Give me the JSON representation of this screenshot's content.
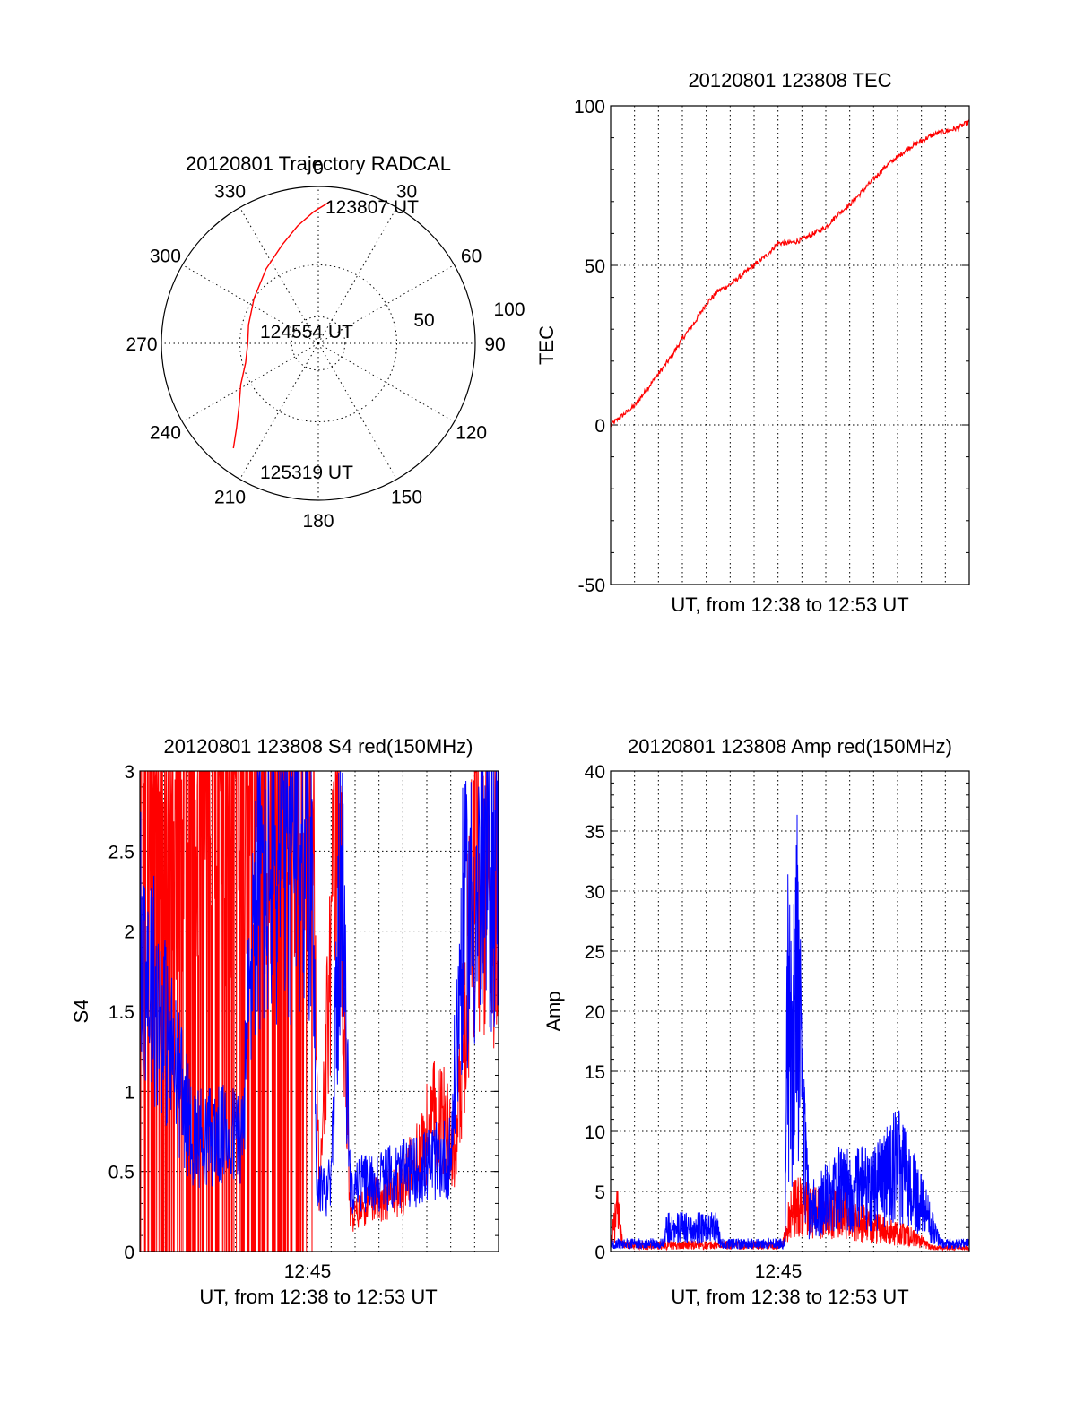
{
  "colors": {
    "red": "#ff0000",
    "blue": "#0000ff",
    "axis": "#000000"
  },
  "chart_data": [
    {
      "id": "trajectory",
      "type": "polar",
      "title": "20120801 Trajectory RADCAL",
      "angle_labels": [
        "0",
        "30",
        "60",
        "90",
        "120",
        "150",
        "180",
        "210",
        "240",
        "270",
        "300",
        "330"
      ],
      "radial_labels": [
        "50",
        "100"
      ],
      "rlim": [
        0,
        100
      ],
      "grid": true,
      "series": [
        {
          "color": "red",
          "points": [
            {
              "az": 5,
              "r": 91
            },
            {
              "az": 358,
              "r": 84
            },
            {
              "az": 350,
              "r": 76
            },
            {
              "az": 340,
              "r": 67
            },
            {
              "az": 325,
              "r": 58
            },
            {
              "az": 305,
              "r": 50
            },
            {
              "az": 285,
              "r": 46
            },
            {
              "az": 270,
              "r": 45
            },
            {
              "az": 255,
              "r": 48
            },
            {
              "az": 242,
              "r": 56
            },
            {
              "az": 232,
              "r": 64
            },
            {
              "az": 224,
              "r": 75
            },
            {
              "az": 219,
              "r": 86
            }
          ]
        }
      ],
      "annotations": [
        {
          "text": "123807 UT",
          "az": 5,
          "r": 91
        },
        {
          "text": "124554 UT",
          "az": 270,
          "r": 45
        },
        {
          "text": "125319 UT",
          "az": 219,
          "r": 86
        }
      ]
    },
    {
      "id": "tec",
      "type": "line",
      "title": "20120801 123808 TEC",
      "xlabel": "UT, from 12:38 to 12:53 UT",
      "ylabel": "TEC",
      "xlim": [
        0,
        15
      ],
      "ylim": [
        -50,
        100
      ],
      "yticks": [
        -50,
        0,
        50,
        100
      ],
      "xtick_labels": [],
      "grid": true,
      "series": [
        {
          "color": "red",
          "x": [
            0,
            0.5,
            1,
            1.5,
            2,
            2.5,
            3,
            3.5,
            4,
            4.5,
            5,
            5.5,
            6,
            6.5,
            7,
            7.5,
            8,
            8.5,
            9,
            9.5,
            10,
            10.5,
            11,
            11.5,
            12,
            12.5,
            13,
            13.5,
            14,
            14.5,
            15
          ],
          "y": [
            0,
            3,
            6,
            11,
            16,
            21,
            27,
            32,
            38,
            42,
            44,
            47,
            50,
            53,
            57,
            57,
            58,
            60,
            62,
            66,
            69,
            73,
            77,
            81,
            84,
            87,
            89,
            91,
            92,
            93,
            95
          ]
        }
      ]
    },
    {
      "id": "s4",
      "type": "line",
      "title": "20120801 123808 S4 red(150MHz)",
      "xlabel": "UT, from 12:38 to 12:53 UT",
      "ylabel": "S4",
      "xlim": [
        0,
        15
      ],
      "ylim": [
        0,
        3
      ],
      "yticks": [
        0,
        0.5,
        1,
        1.5,
        2,
        2.5,
        3
      ],
      "xtick_labels": [
        {
          "x": 7,
          "label": "12:45"
        }
      ],
      "grid": true,
      "series": [
        {
          "color": "red",
          "style": "scintillation",
          "profile": [
            [
              0,
              3.0
            ],
            [
              7.2,
              3.0
            ],
            [
              7.5,
              0.3
            ],
            [
              8.3,
              2.8
            ],
            [
              8.8,
              0.2
            ],
            [
              9.5,
              0.3
            ],
            [
              11.0,
              0.4
            ],
            [
              12.5,
              0.9
            ],
            [
              13.2,
              0.6
            ],
            [
              14.0,
              2.5
            ],
            [
              15,
              2.2
            ]
          ]
        },
        {
          "color": "blue",
          "style": "scintillation",
          "profile": [
            [
              0,
              2.0
            ],
            [
              2.2,
              0.72
            ],
            [
              4.3,
              0.72
            ],
            [
              4.8,
              2.3
            ],
            [
              7.2,
              2.6
            ],
            [
              7.4,
              0.4
            ],
            [
              8.0,
              0.4
            ],
            [
              8.4,
              2.5
            ],
            [
              8.8,
              0.4
            ],
            [
              11.5,
              0.5
            ],
            [
              13.0,
              0.6
            ],
            [
              13.5,
              2.0
            ],
            [
              15,
              2.5
            ]
          ]
        }
      ]
    },
    {
      "id": "amp",
      "type": "line",
      "title": "20120801 123808 Amp red(150MHz)",
      "xlabel": "UT, from 12:38 to 12:53 UT",
      "ylabel": "Amp",
      "xlim": [
        0,
        15
      ],
      "ylim": [
        0,
        40
      ],
      "yticks": [
        0,
        5,
        10,
        15,
        20,
        25,
        30,
        35,
        40
      ],
      "xtick_labels": [
        {
          "x": 7,
          "label": "12:45"
        }
      ],
      "grid": true,
      "series": [
        {
          "color": "red",
          "style": "noise",
          "profile": [
            [
              0,
              1.0
            ],
            [
              0.3,
              5.5
            ],
            [
              0.5,
              0.8
            ],
            [
              7.2,
              0.8
            ],
            [
              7.6,
              6.0
            ],
            [
              8.5,
              5.0
            ],
            [
              9.5,
              5.0
            ],
            [
              11.0,
              3.0
            ],
            [
              12.5,
              2.0
            ],
            [
              13.5,
              0.5
            ],
            [
              15,
              0.5
            ]
          ]
        },
        {
          "color": "blue",
          "style": "noise",
          "profile": [
            [
              0,
              1.0
            ],
            [
              2.2,
              1.0
            ],
            [
              2.3,
              3.0
            ],
            [
              4.5,
              3.0
            ],
            [
              4.6,
              1.0
            ],
            [
              7.3,
              1.0
            ],
            [
              7.4,
              30.0
            ],
            [
              7.6,
              22.0
            ],
            [
              7.8,
              38.0
            ],
            [
              8.0,
              18.0
            ],
            [
              8.3,
              5.0
            ],
            [
              9.5,
              8.0
            ],
            [
              11.0,
              8.0
            ],
            [
              12.0,
              11.0
            ],
            [
              13.0,
              6.0
            ],
            [
              13.8,
              1.0
            ],
            [
              15,
              1.0
            ]
          ]
        }
      ]
    }
  ]
}
